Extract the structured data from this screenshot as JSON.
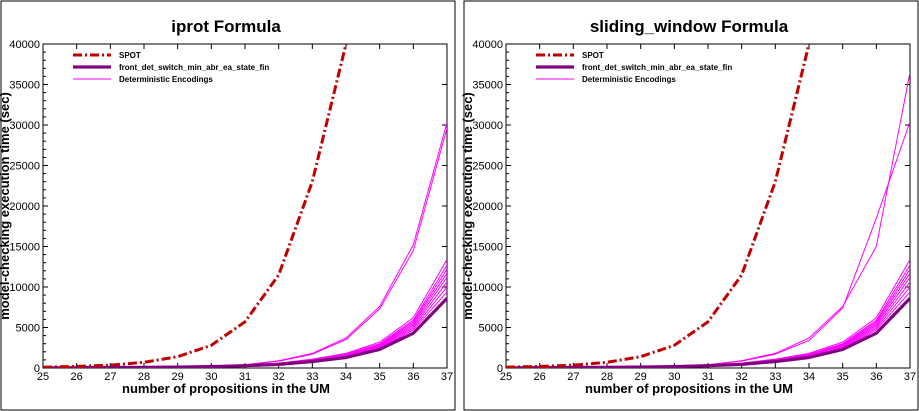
{
  "chart_data": [
    {
      "type": "line",
      "title": "iprot Formula",
      "xlabel": "number of propositions in the UM",
      "ylabel": "model-checking execution time (sec)",
      "xlim": [
        25,
        37
      ],
      "ylim": [
        0,
        40000
      ],
      "xticks": [
        25,
        26,
        27,
        28,
        29,
        30,
        31,
        32,
        33,
        34,
        35,
        36,
        37
      ],
      "yticks": [
        0,
        5000,
        10000,
        15000,
        20000,
        25000,
        30000,
        35000,
        40000
      ],
      "legend_position": "top-left",
      "series": [
        {
          "name": "SPOT",
          "color": "#c00000",
          "style": "dash-dot",
          "x": [
            25,
            26,
            27,
            28,
            29,
            30,
            31,
            32,
            33,
            34
          ],
          "y": [
            100,
            200,
            350,
            700,
            1400,
            2800,
            5700,
            11500,
            23000,
            40000
          ]
        },
        {
          "name": "front_det_switch_min_abr_ea_state_fin",
          "color": "#800080",
          "style": "thick",
          "x": [
            25,
            26,
            27,
            28,
            29,
            30,
            31,
            32,
            33,
            34,
            35,
            36,
            37
          ],
          "y": [
            30,
            40,
            60,
            80,
            110,
            170,
            280,
            450,
            800,
            1300,
            2300,
            4300,
            8600
          ]
        },
        {
          "name": "Deterministic Encodings",
          "color": "#ff00ff",
          "style": "thin",
          "x": [
            25,
            26,
            27,
            28,
            29,
            30,
            31,
            32,
            33,
            34,
            35,
            36,
            37
          ],
          "lines": [
            [
              20,
              40,
              70,
              110,
              170,
              260,
              400,
              900,
              1800,
              3700,
              7600,
              15200,
              30300
            ],
            [
              20,
              40,
              70,
              110,
              170,
              260,
              400,
              850,
              1700,
              3500,
              7300,
              14500,
              29600
            ],
            [
              30,
              50,
              70,
              100,
              150,
              220,
              330,
              600,
              1100,
              1800,
              3200,
              6200,
              13400
            ],
            [
              30,
              50,
              70,
              100,
              150,
              220,
              330,
              580,
              1050,
              1700,
              3000,
              5900,
              12700
            ],
            [
              30,
              45,
              65,
              95,
              140,
              210,
              320,
              560,
              1000,
              1650,
              2900,
              5700,
              12200
            ],
            [
              30,
              45,
              65,
              95,
              140,
              210,
              310,
              540,
              970,
              1600,
              2800,
              5500,
              11700
            ],
            [
              30,
              45,
              65,
              90,
              135,
              200,
              300,
              520,
              940,
              1550,
              2700,
              5300,
              11200
            ],
            [
              30,
              45,
              60,
              90,
              130,
              195,
              290,
              500,
              900,
              1500,
              2600,
              5100,
              10600
            ],
            [
              30,
              45,
              60,
              85,
              125,
              190,
              280,
              480,
              870,
              1450,
              2500,
              4900,
              10000
            ],
            [
              30,
              40,
              60,
              85,
              120,
              180,
              270,
              460,
              840,
              1400,
              2400,
              4700,
              9400
            ]
          ]
        }
      ]
    },
    {
      "type": "line",
      "title": "sliding_window Formula",
      "xlabel": "number of propositions in the UM",
      "ylabel": "model-checking execution time (sec)",
      "xlim": [
        25,
        37
      ],
      "ylim": [
        0,
        40000
      ],
      "xticks": [
        25,
        26,
        27,
        28,
        29,
        30,
        31,
        32,
        33,
        34,
        35,
        36,
        37
      ],
      "yticks": [
        0,
        5000,
        10000,
        15000,
        20000,
        25000,
        30000,
        35000,
        40000
      ],
      "legend_position": "top-left",
      "series": [
        {
          "name": "SPOT",
          "color": "#c00000",
          "style": "dash-dot",
          "x": [
            25,
            26,
            27,
            28,
            29,
            30,
            31,
            32,
            33,
            34
          ],
          "y": [
            100,
            200,
            350,
            700,
            1400,
            2800,
            5700,
            11500,
            23000,
            40000
          ]
        },
        {
          "name": "front_det_switch_min_abr_ea_state_fin",
          "color": "#800080",
          "style": "thick",
          "x": [
            25,
            26,
            27,
            28,
            29,
            30,
            31,
            32,
            33,
            34,
            35,
            36,
            37
          ],
          "y": [
            30,
            40,
            60,
            80,
            110,
            170,
            280,
            450,
            800,
            1300,
            2300,
            4300,
            8600
          ]
        },
        {
          "name": "Deterministic Encodings",
          "color": "#ff00ff",
          "style": "thin",
          "x": [
            25,
            26,
            27,
            28,
            29,
            30,
            31,
            32,
            33,
            34,
            35,
            36,
            37
          ],
          "lines": [
            [
              20,
              40,
              70,
              110,
              170,
              260,
              400,
              900,
              1800,
              3700,
              7600,
              15000,
              36500
            ],
            [
              20,
              40,
              70,
              110,
              170,
              260,
              400,
              850,
              1700,
              3400,
              7400,
              18500,
              30400
            ],
            [
              30,
              50,
              70,
              100,
              150,
              220,
              330,
              600,
              1100,
              1800,
              3200,
              6200,
              13400
            ],
            [
              30,
              50,
              70,
              100,
              150,
              220,
              330,
              580,
              1050,
              1700,
              3000,
              5900,
              12700
            ],
            [
              30,
              45,
              65,
              95,
              140,
              210,
              320,
              560,
              1000,
              1650,
              2900,
              5700,
              12200
            ],
            [
              30,
              45,
              65,
              95,
              140,
              210,
              310,
              540,
              970,
              1600,
              2800,
              5500,
              11700
            ],
            [
              30,
              45,
              65,
              90,
              135,
              200,
              300,
              520,
              940,
              1550,
              2700,
              5300,
              11200
            ],
            [
              30,
              45,
              60,
              90,
              130,
              195,
              290,
              500,
              900,
              1500,
              2600,
              5100,
              10600
            ],
            [
              30,
              45,
              60,
              85,
              125,
              190,
              280,
              480,
              870,
              1450,
              2500,
              4900,
              10000
            ],
            [
              30,
              40,
              60,
              85,
              120,
              180,
              270,
              460,
              840,
              1400,
              2400,
              4700,
              9400
            ]
          ]
        }
      ]
    }
  ]
}
